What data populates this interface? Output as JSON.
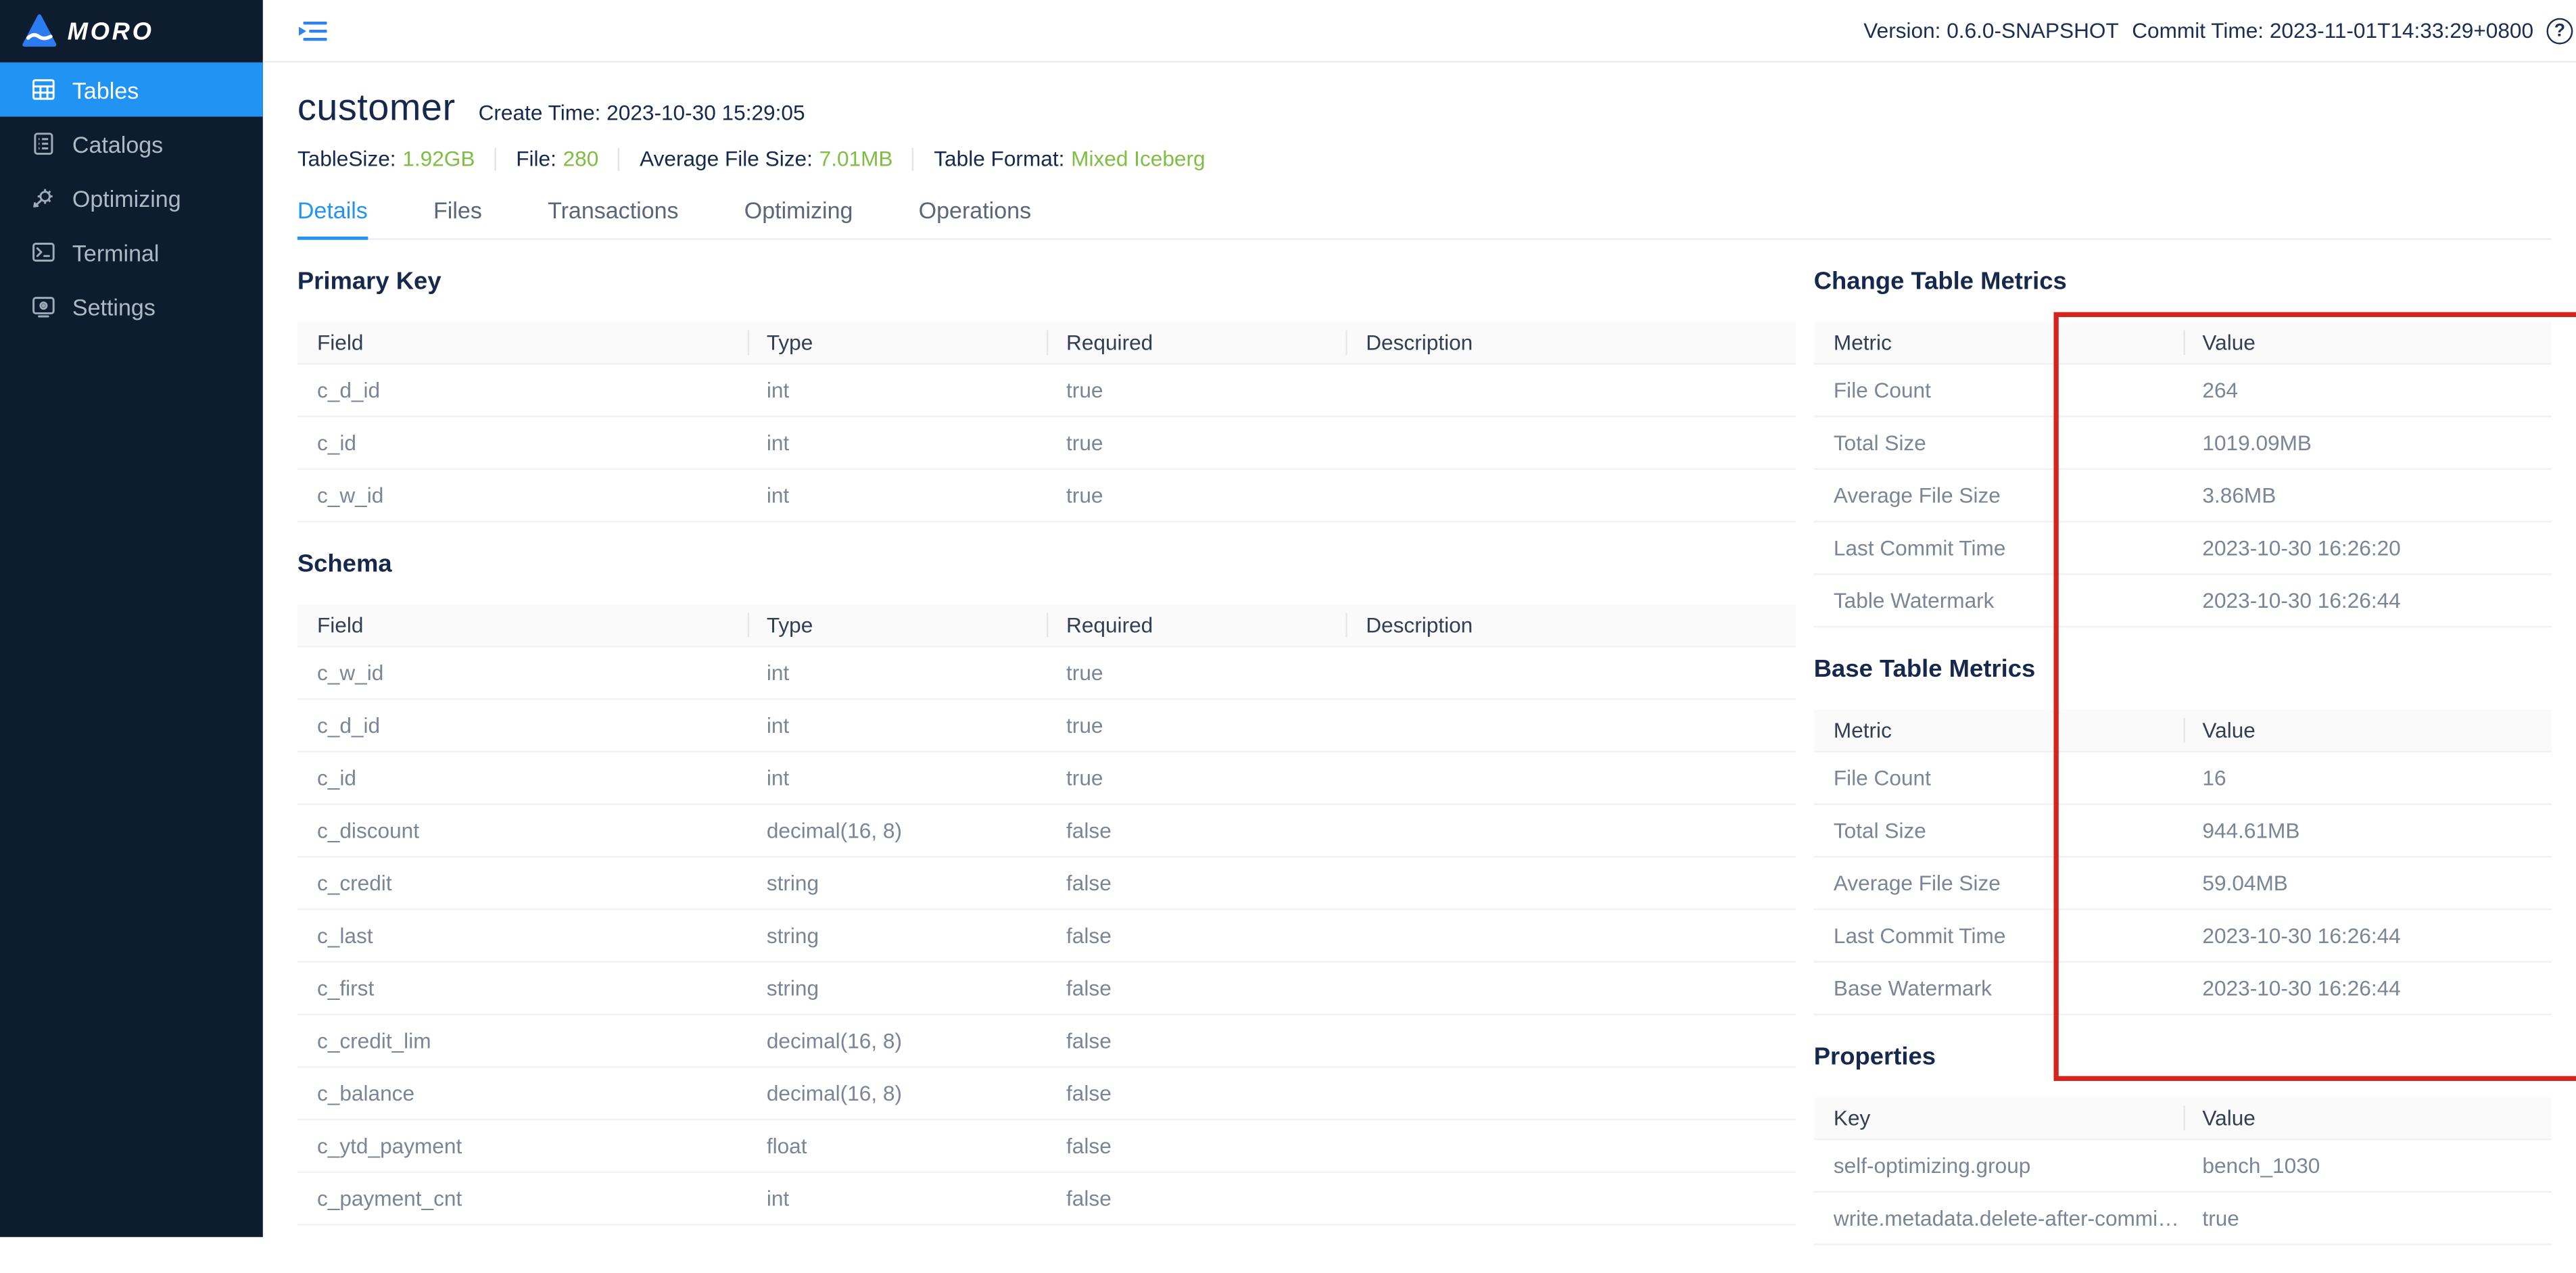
{
  "logo": {
    "brand": "MORO"
  },
  "sidebar": {
    "items": [
      {
        "label": "Tables",
        "active": true
      },
      {
        "label": "Catalogs",
        "active": false
      },
      {
        "label": "Optimizing",
        "active": false
      },
      {
        "label": "Terminal",
        "active": false
      },
      {
        "label": "Settings",
        "active": false
      }
    ]
  },
  "topbar": {
    "version_text": "Version: 0.6.0-SNAPSHOT",
    "commit_text": "Commit Time: 2023-11-01T14:33:29+0800",
    "help_glyph": "?"
  },
  "header": {
    "title": "customer",
    "create_time": "Create Time: 2023-10-30 15:29:05",
    "stats": [
      {
        "label": "TableSize:",
        "value": "1.92GB"
      },
      {
        "label": "File:",
        "value": "280"
      },
      {
        "label": "Average File Size:",
        "value": "7.01MB"
      },
      {
        "label": "Table Format:",
        "value": "Mixed Iceberg"
      }
    ]
  },
  "tabs": [
    {
      "label": "Details",
      "active": true
    },
    {
      "label": "Files",
      "active": false
    },
    {
      "label": "Transactions",
      "active": false
    },
    {
      "label": "Optimizing",
      "active": false
    },
    {
      "label": "Operations",
      "active": false
    }
  ],
  "primary_key": {
    "title": "Primary Key",
    "columns": [
      "Field",
      "Type",
      "Required",
      "Description"
    ],
    "rows": [
      [
        "c_d_id",
        "int",
        "true",
        ""
      ],
      [
        "c_id",
        "int",
        "true",
        ""
      ],
      [
        "c_w_id",
        "int",
        "true",
        ""
      ]
    ]
  },
  "schema": {
    "title": "Schema",
    "columns": [
      "Field",
      "Type",
      "Required",
      "Description"
    ],
    "rows": [
      [
        "c_w_id",
        "int",
        "true",
        ""
      ],
      [
        "c_d_id",
        "int",
        "true",
        ""
      ],
      [
        "c_id",
        "int",
        "true",
        ""
      ],
      [
        "c_discount",
        "decimal(16, 8)",
        "false",
        ""
      ],
      [
        "c_credit",
        "string",
        "false",
        ""
      ],
      [
        "c_last",
        "string",
        "false",
        ""
      ],
      [
        "c_first",
        "string",
        "false",
        ""
      ],
      [
        "c_credit_lim",
        "decimal(16, 8)",
        "false",
        ""
      ],
      [
        "c_balance",
        "decimal(16, 8)",
        "false",
        ""
      ],
      [
        "c_ytd_payment",
        "float",
        "false",
        ""
      ],
      [
        "c_payment_cnt",
        "int",
        "false",
        ""
      ]
    ]
  },
  "change_metrics": {
    "title": "Change Table Metrics",
    "columns": [
      "Metric",
      "Value"
    ],
    "rows": [
      [
        "File Count",
        "264"
      ],
      [
        "Total Size",
        "1019.09MB"
      ],
      [
        "Average File Size",
        "3.86MB"
      ],
      [
        "Last Commit Time",
        "2023-10-30 16:26:20"
      ],
      [
        "Table Watermark",
        "2023-10-30 16:26:44"
      ]
    ]
  },
  "base_metrics": {
    "title": "Base Table Metrics",
    "columns": [
      "Metric",
      "Value"
    ],
    "rows": [
      [
        "File Count",
        "16"
      ],
      [
        "Total Size",
        "944.61MB"
      ],
      [
        "Average File Size",
        "59.04MB"
      ],
      [
        "Last Commit Time",
        "2023-10-30 16:26:44"
      ],
      [
        "Base Watermark",
        "2023-10-30 16:26:44"
      ]
    ]
  },
  "properties": {
    "title": "Properties",
    "columns": [
      "Key",
      "Value"
    ],
    "rows": [
      [
        "self-optimizing.group",
        "bench_1030"
      ],
      [
        "write.metadata.delete-after-commit....",
        "true"
      ]
    ]
  },
  "colors": {
    "accent_blue": "#2193f3",
    "value_green": "#7fbe42",
    "annotation_red": "#d7231e",
    "sidebar_bg": "#0d1c2e",
    "heading_navy": "#16294d"
  }
}
